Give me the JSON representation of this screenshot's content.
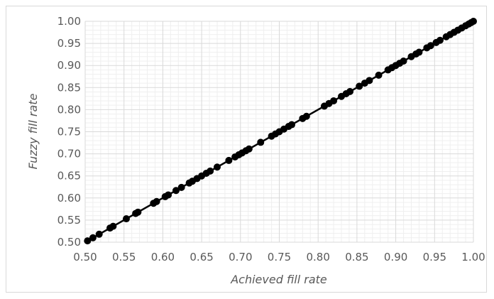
{
  "chart_data": {
    "type": "scatter",
    "title": "",
    "xlabel": "Achieved fill rate",
    "ylabel": "Fuzzy fill rate",
    "xlim": [
      0.5,
      1.0
    ],
    "ylim": [
      0.5,
      1.0
    ],
    "x_ticks": [
      "0.50",
      "0.55",
      "0.60",
      "0.65",
      "0.70",
      "0.75",
      "0.80",
      "0.85",
      "0.90",
      "0.95",
      "1.00"
    ],
    "y_ticks": [
      "0.50",
      "0.55",
      "0.60",
      "0.65",
      "0.70",
      "0.75",
      "0.80",
      "0.85",
      "0.90",
      "0.95",
      "1.00"
    ],
    "grid": {
      "major": true,
      "minor": true
    },
    "legend": "none",
    "colors": {
      "points": "#000000",
      "line": "#000000",
      "major_grid": "#d9d9d9",
      "minor_grid": "#efefef"
    },
    "trendline": {
      "x": [
        0.5,
        1.0
      ],
      "y": [
        0.5,
        1.0
      ]
    },
    "series": [
      {
        "x": [
          0.503,
          0.51,
          0.518,
          0.532,
          0.536,
          0.553,
          0.565,
          0.568,
          0.588,
          0.592,
          0.603,
          0.607,
          0.617,
          0.624,
          0.634,
          0.638,
          0.644,
          0.65,
          0.656,
          0.661,
          0.67,
          0.685,
          0.693,
          0.698,
          0.702,
          0.707,
          0.711,
          0.726,
          0.74,
          0.745,
          0.75,
          0.756,
          0.762,
          0.766,
          0.78,
          0.785,
          0.808,
          0.814,
          0.82,
          0.83,
          0.836,
          0.841,
          0.853,
          0.86,
          0.866,
          0.878,
          0.89,
          0.895,
          0.9,
          0.905,
          0.91,
          0.92,
          0.926,
          0.93,
          0.94,
          0.945,
          0.952,
          0.957,
          0.965,
          0.97,
          0.975,
          0.98,
          0.985,
          0.99,
          0.994,
          0.997,
          1.0
        ],
        "y": [
          0.503,
          0.51,
          0.518,
          0.532,
          0.536,
          0.553,
          0.565,
          0.568,
          0.588,
          0.592,
          0.603,
          0.607,
          0.617,
          0.624,
          0.634,
          0.638,
          0.644,
          0.65,
          0.656,
          0.661,
          0.67,
          0.685,
          0.693,
          0.698,
          0.702,
          0.707,
          0.711,
          0.726,
          0.74,
          0.745,
          0.75,
          0.756,
          0.762,
          0.766,
          0.78,
          0.785,
          0.808,
          0.814,
          0.82,
          0.83,
          0.836,
          0.841,
          0.853,
          0.86,
          0.866,
          0.878,
          0.89,
          0.895,
          0.9,
          0.905,
          0.91,
          0.92,
          0.926,
          0.93,
          0.94,
          0.945,
          0.952,
          0.957,
          0.965,
          0.97,
          0.975,
          0.98,
          0.985,
          0.99,
          0.994,
          0.997,
          1.0
        ]
      }
    ]
  }
}
